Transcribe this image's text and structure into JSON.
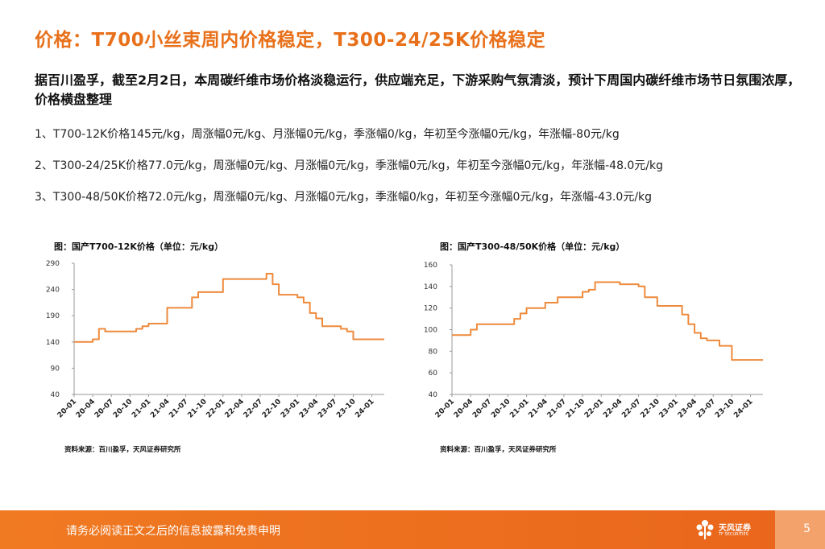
{
  "page": {
    "title": "价格：T700小丝束周内价格稳定，T300-24/25K价格稳定",
    "summary": "据百川盈孚，截至2月2日，本周碳纤维市场价格淡稳运行，供应端充足，下游采购气氛清淡，预计下周国内碳纤维市场节日氛围浓厚，价格横盘整理",
    "bullets": [
      "1、T700-12K价格145元/kg，周涨幅0元/kg、月涨幅0元/kg，季涨幅0/kg，年初至今涨幅0元/kg，年涨幅-80元/kg",
      "2、T300-24/25K价格77.0元/kg，周涨幅0元/kg、月涨幅0元/kg，季涨幅0元/kg，年初至今涨幅0元/kg，年涨幅-48.0元/kg",
      "3、T300-48/50K价格72.0元/kg，周涨幅0元/kg、月涨幅0元/kg，季涨幅0/kg，年初至今涨幅0元/kg，年涨幅-43.0元/kg"
    ]
  },
  "chart_data": [
    {
      "type": "line",
      "title": "图：国产T700-12K价格（单位：元/kg）",
      "source": "资料来源：百川盈孚，天风证券研究所",
      "color": "#EE8A3C",
      "ylim": [
        40,
        290
      ],
      "yticks": [
        290,
        240,
        190,
        140,
        90,
        40
      ],
      "xlim": [
        "2020-01",
        "2024-03"
      ],
      "xticks": [
        "20-01",
        "20-04",
        "20-07",
        "20-10",
        "21-01",
        "21-04",
        "21-07",
        "21-10",
        "22-01",
        "22-04",
        "22-07",
        "22-10",
        "23-01",
        "23-04",
        "23-07",
        "23-10",
        "24-01"
      ],
      "x": [
        "2020-01",
        "2020-03",
        "2020-04",
        "2020-05",
        "2020-06",
        "2020-07",
        "2020-08",
        "2020-09",
        "2020-10",
        "2020-11",
        "2020-12",
        "2021-01",
        "2021-02",
        "2021-03",
        "2021-04",
        "2021-05",
        "2021-06",
        "2021-07",
        "2021-08",
        "2021-09",
        "2021-10",
        "2021-11",
        "2021-12",
        "2022-01",
        "2022-02",
        "2022-03",
        "2022-04",
        "2022-05",
        "2022-06",
        "2022-07",
        "2022-08",
        "2022-09",
        "2022-10",
        "2022-11",
        "2022-12",
        "2023-01",
        "2023-02",
        "2023-03",
        "2023-04",
        "2023-05",
        "2023-06",
        "2023-07",
        "2023-08",
        "2023-09",
        "2023-10",
        "2023-11",
        "2023-12",
        "2024-01",
        "2024-02"
      ],
      "y": [
        140,
        140,
        145,
        165,
        160,
        160,
        160,
        160,
        160,
        165,
        170,
        175,
        175,
        175,
        205,
        205,
        205,
        205,
        225,
        235,
        235,
        235,
        235,
        260,
        260,
        260,
        260,
        260,
        260,
        260,
        270,
        250,
        230,
        230,
        230,
        225,
        215,
        195,
        185,
        170,
        170,
        170,
        165,
        160,
        145,
        145,
        145,
        145,
        145
      ]
    },
    {
      "type": "line",
      "title": "图：国产T300-48/50K价格（单位：元/kg）",
      "source": "资料来源：百川盈孚，天风证券研究所",
      "color": "#EE8A3C",
      "ylim": [
        40,
        160
      ],
      "yticks": [
        160,
        140,
        120,
        100,
        80,
        60,
        40
      ],
      "xlim": [
        "2020-01",
        "2024-03"
      ],
      "xticks": [
        "20-01",
        "20-04",
        "20-07",
        "20-10",
        "21-01",
        "21-04",
        "21-07",
        "21-10",
        "22-01",
        "22-04",
        "22-07",
        "22-10",
        "23-01",
        "23-04",
        "23-07",
        "23-10",
        "24-01"
      ],
      "x": [
        "2020-01",
        "2020-03",
        "2020-04",
        "2020-05",
        "2020-06",
        "2020-07",
        "2020-08",
        "2020-09",
        "2020-10",
        "2020-11",
        "2020-12",
        "2021-01",
        "2021-02",
        "2021-03",
        "2021-04",
        "2021-05",
        "2021-06",
        "2021-07",
        "2021-08",
        "2021-09",
        "2021-10",
        "2021-11",
        "2021-12",
        "2022-01",
        "2022-02",
        "2022-03",
        "2022-04",
        "2022-05",
        "2022-06",
        "2022-07",
        "2022-08",
        "2022-09",
        "2022-10",
        "2022-11",
        "2022-12",
        "2023-01",
        "2023-02",
        "2023-03",
        "2023-04",
        "2023-05",
        "2023-06",
        "2023-07",
        "2023-08",
        "2023-09",
        "2023-10",
        "2023-11",
        "2023-12",
        "2024-01",
        "2024-02"
      ],
      "y": [
        95,
        95,
        100,
        105,
        105,
        105,
        105,
        105,
        105,
        110,
        115,
        120,
        120,
        120,
        125,
        125,
        130,
        130,
        130,
        130,
        135,
        137,
        144,
        144,
        144,
        144,
        142,
        142,
        142,
        140,
        130,
        130,
        122,
        122,
        122,
        122,
        114,
        105,
        97,
        92,
        90,
        90,
        85,
        85,
        72,
        72,
        72,
        72,
        72
      ]
    }
  ],
  "footer": {
    "disclaimer": "请务必阅读正文之后的信息披露和免责申明",
    "logo_name": "天风证券",
    "logo_sub": "TF SECURITIES",
    "page_number": "5"
  }
}
